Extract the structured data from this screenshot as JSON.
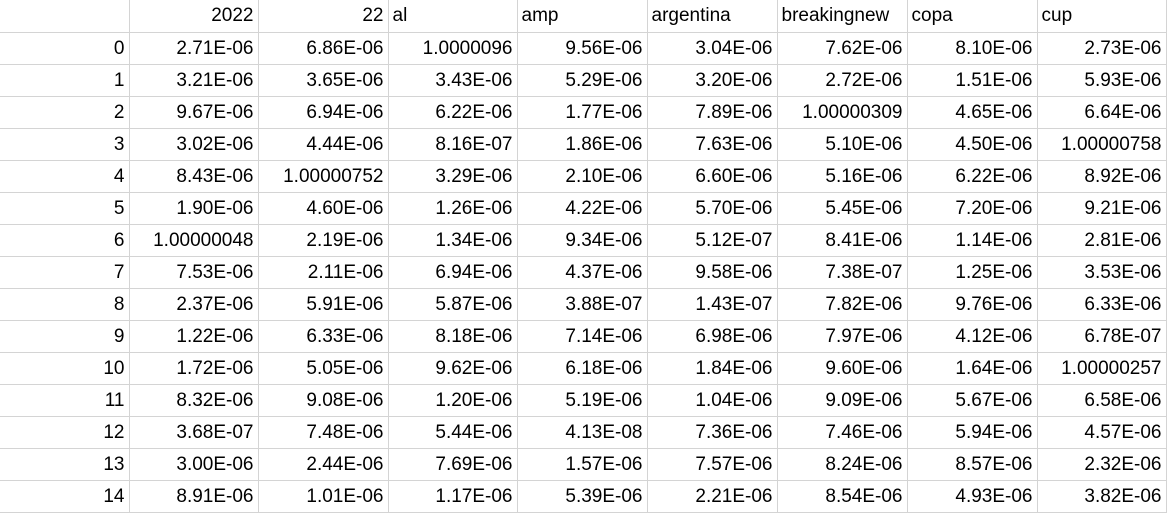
{
  "headers": [
    "",
    "2022",
    "22",
    "al",
    "amp",
    "argentina",
    "breakingnew",
    "copa",
    "cup"
  ],
  "header_align": [
    "right",
    "right",
    "right",
    "left",
    "left",
    "left",
    "left",
    "left",
    "left"
  ],
  "rows": [
    [
      "0",
      "2.71E-06",
      "6.86E-06",
      "1.0000096",
      "9.56E-06",
      "3.04E-06",
      "7.62E-06",
      "8.10E-06",
      "2.73E-06"
    ],
    [
      "1",
      "3.21E-06",
      "3.65E-06",
      "3.43E-06",
      "5.29E-06",
      "3.20E-06",
      "2.72E-06",
      "1.51E-06",
      "5.93E-06"
    ],
    [
      "2",
      "9.67E-06",
      "6.94E-06",
      "6.22E-06",
      "1.77E-06",
      "7.89E-06",
      "1.00000309",
      "4.65E-06",
      "6.64E-06"
    ],
    [
      "3",
      "3.02E-06",
      "4.44E-06",
      "8.16E-07",
      "1.86E-06",
      "7.63E-06",
      "5.10E-06",
      "4.50E-06",
      "1.00000758"
    ],
    [
      "4",
      "8.43E-06",
      "1.00000752",
      "3.29E-06",
      "2.10E-06",
      "6.60E-06",
      "5.16E-06",
      "6.22E-06",
      "8.92E-06"
    ],
    [
      "5",
      "1.90E-06",
      "4.60E-06",
      "1.26E-06",
      "4.22E-06",
      "5.70E-06",
      "5.45E-06",
      "7.20E-06",
      "9.21E-06"
    ],
    [
      "6",
      "1.00000048",
      "2.19E-06",
      "1.34E-06",
      "9.34E-06",
      "5.12E-07",
      "8.41E-06",
      "1.14E-06",
      "2.81E-06"
    ],
    [
      "7",
      "7.53E-06",
      "2.11E-06",
      "6.94E-06",
      "4.37E-06",
      "9.58E-06",
      "7.38E-07",
      "1.25E-06",
      "3.53E-06"
    ],
    [
      "8",
      "2.37E-06",
      "5.91E-06",
      "5.87E-06",
      "3.88E-07",
      "1.43E-07",
      "7.82E-06",
      "9.76E-06",
      "6.33E-06"
    ],
    [
      "9",
      "1.22E-06",
      "6.33E-06",
      "8.18E-06",
      "7.14E-06",
      "6.98E-06",
      "7.97E-06",
      "4.12E-06",
      "6.78E-07"
    ],
    [
      "10",
      "1.72E-06",
      "5.05E-06",
      "9.62E-06",
      "6.18E-06",
      "1.84E-06",
      "9.60E-06",
      "1.64E-06",
      "1.00000257"
    ],
    [
      "11",
      "8.32E-06",
      "9.08E-06",
      "1.20E-06",
      "5.19E-06",
      "1.04E-06",
      "9.09E-06",
      "5.67E-06",
      "6.58E-06"
    ],
    [
      "12",
      "3.68E-07",
      "7.48E-06",
      "5.44E-06",
      "4.13E-08",
      "7.36E-06",
      "7.46E-06",
      "5.94E-06",
      "4.57E-06"
    ],
    [
      "13",
      "3.00E-06",
      "2.44E-06",
      "7.69E-06",
      "1.57E-06",
      "7.57E-06",
      "8.24E-06",
      "8.57E-06",
      "2.32E-06"
    ],
    [
      "14",
      "8.91E-06",
      "1.01E-06",
      "1.17E-06",
      "5.39E-06",
      "2.21E-06",
      "8.54E-06",
      "4.93E-06",
      "3.82E-06"
    ]
  ]
}
